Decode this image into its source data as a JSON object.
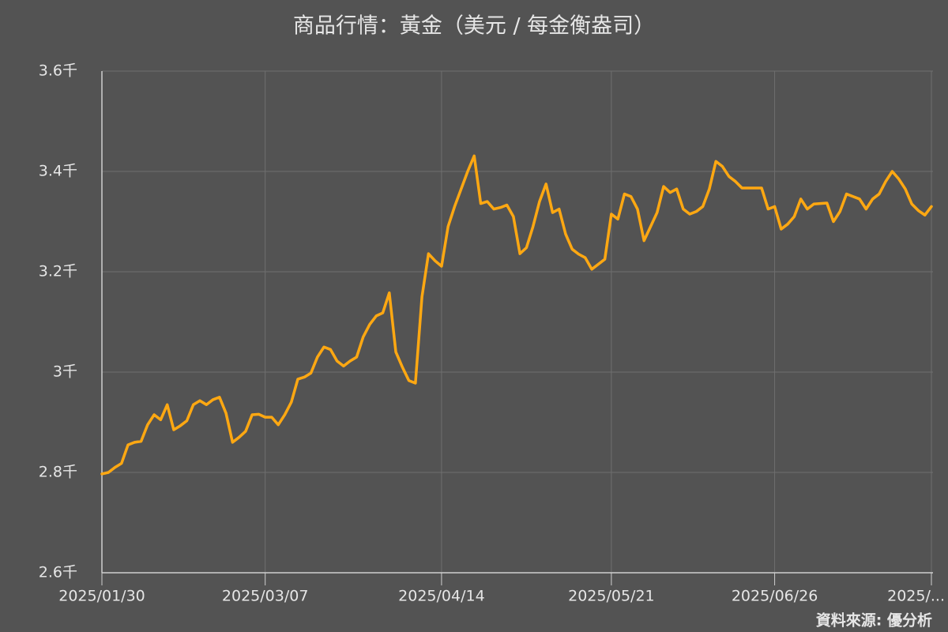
{
  "chart_data": {
    "type": "line",
    "title": "商品行情：黃金（美元 / 每金衡盎司）",
    "source": "資料來源: 優分析",
    "categories": [
      "2025/01/30",
      null,
      null,
      null,
      null,
      null,
      null,
      null,
      null,
      null,
      null,
      null,
      null,
      null,
      null,
      null,
      null,
      null,
      null,
      null,
      null,
      null,
      null,
      null,
      null,
      "2025/03/07",
      null,
      null,
      null,
      null,
      null,
      null,
      null,
      null,
      null,
      null,
      null,
      null,
      null,
      null,
      null,
      null,
      null,
      null,
      null,
      null,
      null,
      null,
      null,
      null,
      null,
      null,
      "2025/04/14",
      null,
      null,
      null,
      null,
      null,
      null,
      null,
      null,
      null,
      null,
      null,
      null,
      null,
      null,
      null,
      null,
      null,
      null,
      null,
      null,
      null,
      null,
      null,
      null,
      null,
      "2025/05/21",
      null,
      null,
      null,
      null,
      null,
      null,
      null,
      null,
      null,
      null,
      null,
      null,
      null,
      null,
      null,
      null,
      null,
      null,
      null,
      null,
      null,
      null,
      null,
      null,
      "2025/06/26",
      null,
      null,
      null,
      null,
      null,
      null,
      null,
      null,
      null,
      null,
      null,
      null,
      null,
      null,
      null,
      null,
      null,
      null,
      null,
      null,
      null,
      null,
      null,
      "2025/..."
    ],
    "series": [
      {
        "name": "黃金",
        "color": "#ffa812",
        "values": [
          2797,
          2800,
          2810,
          2818,
          2855,
          2860,
          2862,
          2895,
          2915,
          2905,
          2935,
          2885,
          2893,
          2903,
          2935,
          2943,
          2935,
          2945,
          2950,
          2918,
          2860,
          2870,
          2882,
          2915,
          2916,
          2910,
          2910,
          2895,
          2915,
          2940,
          2986,
          2990,
          2998,
          3030,
          3050,
          3045,
          3022,
          3012,
          3022,
          3030,
          3070,
          3095,
          3112,
          3118,
          3158,
          3040,
          3010,
          2983,
          2978,
          3150,
          3236,
          3222,
          3211,
          3290,
          3330,
          3365,
          3400,
          3431,
          3336,
          3340,
          3325,
          3328,
          3333,
          3310,
          3236,
          3248,
          3290,
          3340,
          3375,
          3318,
          3325,
          3275,
          3245,
          3235,
          3228,
          3205,
          3215,
          3225,
          3315,
          3305,
          3355,
          3350,
          3325,
          3262,
          3290,
          3318,
          3370,
          3358,
          3365,
          3325,
          3315,
          3320,
          3330,
          3365,
          3420,
          3410,
          3390,
          3380,
          3367,
          3367,
          3367,
          3367,
          3325,
          3330,
          3285,
          3295,
          3310,
          3345,
          3325,
          3335,
          3336,
          3337,
          3300,
          3320,
          3355,
          3350,
          3345,
          3325,
          3345,
          3355,
          3380,
          3400,
          3385,
          3365,
          3335,
          3322,
          3313,
          3330
        ]
      }
    ],
    "ylim": [
      2600,
      3600
    ],
    "yticks": [
      {
        "value": 2600,
        "label": "2.6千"
      },
      {
        "value": 2800,
        "label": "2.8千"
      },
      {
        "value": 3000,
        "label": "3千"
      },
      {
        "value": 3200,
        "label": "3.2千"
      },
      {
        "value": 3400,
        "label": "3.4千"
      },
      {
        "value": 3600,
        "label": "3.6千"
      }
    ],
    "grid": true
  }
}
